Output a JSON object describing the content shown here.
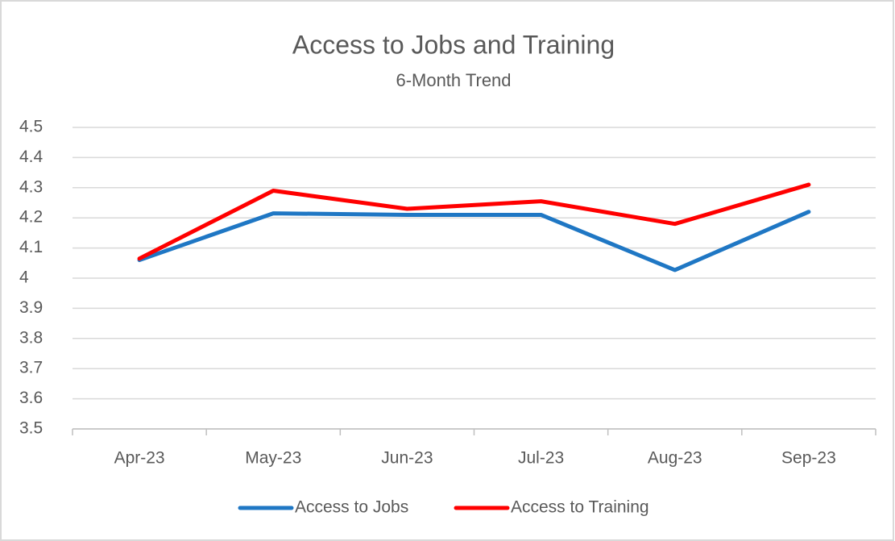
{
  "chart_data": {
    "type": "line",
    "title": "Access to Jobs and Training",
    "subtitle": "6-Month Trend",
    "categories": [
      "Apr-23",
      "May-23",
      "Jun-23",
      "Jul-23",
      "Aug-23",
      "Sep-23"
    ],
    "series": [
      {
        "name": "Access to Jobs",
        "color": "#1f77c4",
        "values": [
          4.06,
          4.215,
          4.21,
          4.21,
          4.027,
          4.22
        ]
      },
      {
        "name": "Access to Training",
        "color": "#ff0000",
        "values": [
          4.065,
          4.29,
          4.23,
          4.255,
          4.18,
          4.31
        ]
      }
    ],
    "ylim": [
      3.5,
      4.5
    ],
    "yticks": [
      3.5,
      3.6,
      3.7,
      3.8,
      3.9,
      4,
      4.1,
      4.2,
      4.3,
      4.4,
      4.5
    ],
    "grid": true,
    "legend": "bottom"
  }
}
